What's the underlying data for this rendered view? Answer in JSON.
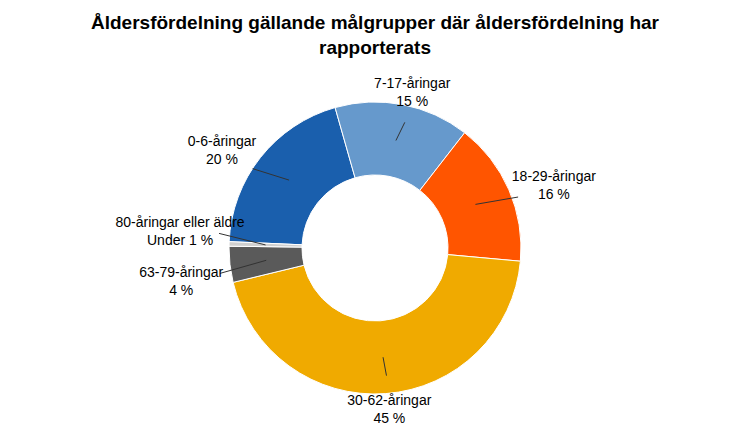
{
  "chart_data": {
    "type": "donut",
    "title": "Åldersfördelning gällande målgrupper där åldersfördelning har rapporterats",
    "categories": [
      "0-6-åringar",
      "7-17-åringar",
      "18-29-åringar",
      "30-62-åringar",
      "63-79-åringar",
      "80-åringar eller äldre"
    ],
    "values": [
      20,
      15,
      16,
      45,
      4,
      0.5
    ],
    "value_labels": [
      "20 %",
      "15 %",
      "16 %",
      "45 %",
      "4 %",
      "Under 1 %"
    ],
    "colors": [
      "#1a5fad",
      "#6699cc",
      "#ff5500",
      "#f0aa00",
      "#5a5a5a",
      "#d0d0d0"
    ],
    "data_labels": true
  }
}
